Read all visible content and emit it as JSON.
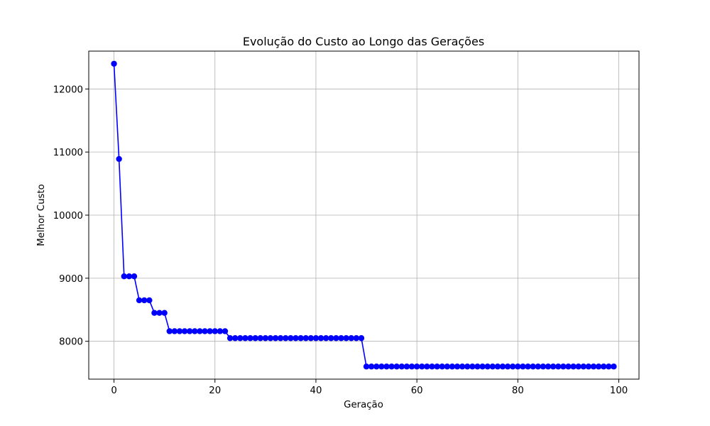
{
  "chart_data": {
    "type": "line",
    "title": "Evolução do Custo ao Longo das Gerações",
    "xlabel": "Geração",
    "ylabel": "Melhor Custo",
    "xlim": [
      -5,
      104
    ],
    "ylim": [
      7400,
      12600
    ],
    "x_ticks": [
      0,
      20,
      40,
      60,
      80,
      100
    ],
    "y_ticks": [
      8000,
      9000,
      10000,
      11000,
      12000
    ],
    "x_tick_labels": [
      "0",
      "20",
      "40",
      "60",
      "80",
      "100"
    ],
    "y_tick_labels": [
      "8000",
      "9000",
      "10000",
      "11000",
      "12000"
    ],
    "grid": true,
    "series": [
      {
        "color": "#0000ff",
        "marker": "circle",
        "x": [
          0,
          1,
          2,
          3,
          4,
          5,
          6,
          7,
          8,
          9,
          10,
          11,
          12,
          13,
          14,
          15,
          16,
          17,
          18,
          19,
          20,
          21,
          22,
          23,
          24,
          25,
          26,
          27,
          28,
          29,
          30,
          31,
          32,
          33,
          34,
          35,
          36,
          37,
          38,
          39,
          40,
          41,
          42,
          43,
          44,
          45,
          46,
          47,
          48,
          49,
          50,
          51,
          52,
          53,
          54,
          55,
          56,
          57,
          58,
          59,
          60,
          61,
          62,
          63,
          64,
          65,
          66,
          67,
          68,
          69,
          70,
          71,
          72,
          73,
          74,
          75,
          76,
          77,
          78,
          79,
          80,
          81,
          82,
          83,
          84,
          85,
          86,
          87,
          88,
          89,
          90,
          91,
          92,
          93,
          94,
          95,
          96,
          97,
          98,
          99
        ],
        "y": [
          12400,
          10890,
          9030,
          9030,
          9030,
          8650,
          8650,
          8650,
          8450,
          8450,
          8450,
          8160,
          8160,
          8160,
          8160,
          8160,
          8160,
          8160,
          8160,
          8160,
          8160,
          8160,
          8160,
          8050,
          8050,
          8050,
          8050,
          8050,
          8050,
          8050,
          8050,
          8050,
          8050,
          8050,
          8050,
          8050,
          8050,
          8050,
          8050,
          8050,
          8050,
          8050,
          8050,
          8050,
          8050,
          8050,
          8050,
          8050,
          8050,
          8050,
          7600,
          7600,
          7600,
          7600,
          7600,
          7600,
          7600,
          7600,
          7600,
          7600,
          7600,
          7600,
          7600,
          7600,
          7600,
          7600,
          7600,
          7600,
          7600,
          7600,
          7600,
          7600,
          7600,
          7600,
          7600,
          7600,
          7600,
          7600,
          7600,
          7600,
          7600,
          7600,
          7600,
          7600,
          7600,
          7600,
          7600,
          7600,
          7600,
          7600,
          7600,
          7600,
          7600,
          7600,
          7600,
          7600,
          7600,
          7600,
          7600,
          7600
        ]
      }
    ]
  }
}
